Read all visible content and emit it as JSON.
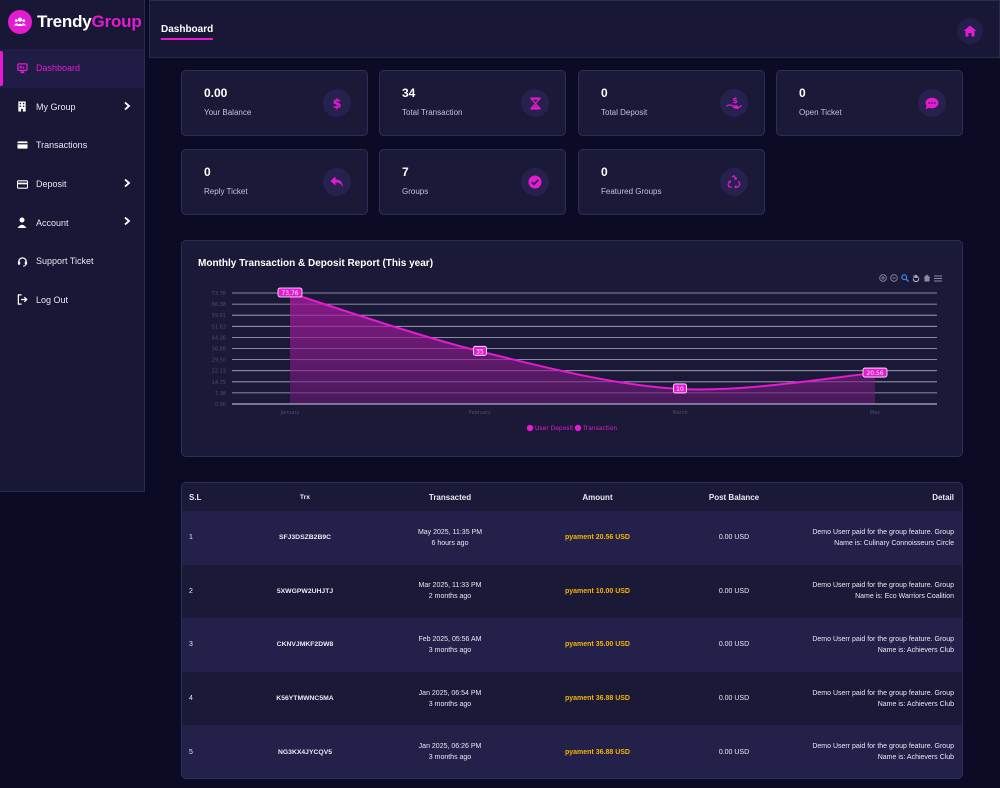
{
  "brand": {
    "part1": "Trendy",
    "part2": "Group",
    "logo_icon": "users-icon",
    "accent": "#e41bd0"
  },
  "sidebar": {
    "items": [
      {
        "label": "Dashboard",
        "icon": "dashboard-icon",
        "active": true,
        "has_submenu": false
      },
      {
        "label": "My Group",
        "icon": "building-icon",
        "active": false,
        "has_submenu": true
      },
      {
        "label": "Transactions",
        "icon": "wallet-icon",
        "active": false,
        "has_submenu": false
      },
      {
        "label": "Deposit",
        "icon": "credit-card-icon",
        "active": false,
        "has_submenu": true
      },
      {
        "label": "Account",
        "icon": "user-icon",
        "active": false,
        "has_submenu": true
      },
      {
        "label": "Support Ticket",
        "icon": "headset-icon",
        "active": false,
        "has_submenu": false
      },
      {
        "label": "Log Out",
        "icon": "logout-icon",
        "active": false,
        "has_submenu": false
      }
    ]
  },
  "header": {
    "title": "Dashboard",
    "home_icon": "home-icon"
  },
  "stats": [
    {
      "value": "0.00",
      "label": "Your Balance",
      "icon": "dollar-icon"
    },
    {
      "value": "34",
      "label": "Total Transaction",
      "icon": "hourglass-icon"
    },
    {
      "value": "0",
      "label": "Total Deposit",
      "icon": "hand-dollar-icon"
    },
    {
      "value": "0",
      "label": "Open Ticket",
      "icon": "chat-icon"
    },
    {
      "value": "0",
      "label": "Reply Ticket",
      "icon": "reply-icon"
    },
    {
      "value": "7",
      "label": "Groups",
      "icon": "check-circle-icon"
    },
    {
      "value": "0",
      "label": "Featured Groups",
      "icon": "recycle-icon"
    }
  ],
  "chart": {
    "title": "Monthly Transaction & Deposit Report (This year)",
    "toolbar_icons": [
      "zoom-in-icon",
      "zoom-out-icon",
      "search-icon",
      "pan-hand-icon",
      "reset-home-icon",
      "menu-icon"
    ]
  },
  "chart_data": {
    "type": "area",
    "categories": [
      "January",
      "February",
      "March",
      "May"
    ],
    "series": [
      {
        "name": "User Deposit",
        "values": [
          0,
          0,
          0,
          0
        ],
        "color": "#e41bd0"
      },
      {
        "name": "Transaction",
        "values": [
          73.76,
          35,
          10,
          20.56
        ],
        "color": "#e41bd0"
      }
    ],
    "y_ticks": [
      "73.76",
      "66.38",
      "59.01",
      "51.63",
      "44.26",
      "36.88",
      "29.50",
      "22.13",
      "14.75",
      "7.38",
      "0.00"
    ],
    "ylim": [
      0,
      73.76
    ],
    "data_labels": [
      "73.76",
      "35",
      "10",
      "20.56"
    ],
    "legend_position": "bottom",
    "grid": true
  },
  "table": {
    "headers": {
      "sl": "S.L",
      "trx": "Trx",
      "transacted": "Transacted",
      "amount": "Amount",
      "post_balance": "Post Balance",
      "detail": "Detail"
    },
    "rows": [
      {
        "sl": "1",
        "trx": "SFJ3DSZB2B9C",
        "date": "May 2025, 11:35 PM",
        "ago": "6 hours ago",
        "amount": "pyament 20.56 USD",
        "post_balance": "0.00 USD",
        "detail1": "Demo Userr paid for the group feature. Group",
        "detail2": "Name is: Culinary Connoisseurs Circle"
      },
      {
        "sl": "2",
        "trx": "5XWGPW2UHJTJ",
        "date": "Mar 2025, 11:33 PM",
        "ago": "2 months ago",
        "amount": "pyament 10.00 USD",
        "post_balance": "0.00 USD",
        "detail1": "Demo Userr paid for the group feature. Group",
        "detail2": "Name is: Eco Warriors Coalition"
      },
      {
        "sl": "3",
        "trx": "CKNVJMKF2DW8",
        "date": "Feb 2025, 05:56 AM",
        "ago": "3 months ago",
        "amount": "pyament 35.00 USD",
        "post_balance": "0.00 USD",
        "detail1": "Demo Userr paid for the group feature. Group",
        "detail2": "Name is: Achievers Club"
      },
      {
        "sl": "4",
        "trx": "K56YTMWNC5MA",
        "date": "Jan 2025, 06:54 PM",
        "ago": "3 months ago",
        "amount": "pyament 36.88 USD",
        "post_balance": "0.00 USD",
        "detail1": "Demo Userr paid for the group feature. Group",
        "detail2": "Name is: Achievers Club"
      },
      {
        "sl": "5",
        "trx": "NG3KX4JYCQV5",
        "date": "Jan 2025, 06:26 PM",
        "ago": "3 months ago",
        "amount": "pyament 36.88 USD",
        "post_balance": "0.00 USD",
        "detail1": "Demo Userr paid for the group feature. Group",
        "detail2": "Name is: Achievers Club"
      }
    ]
  }
}
